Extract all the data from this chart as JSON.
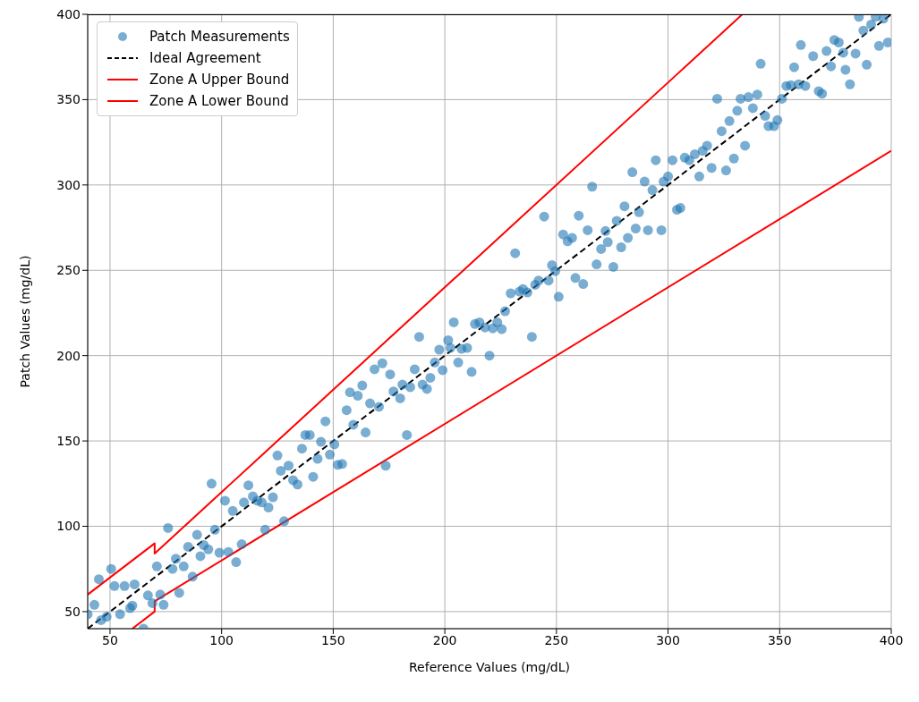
{
  "chart_data": {
    "type": "scatter",
    "xlabel": "Reference Values (mg/dL)",
    "ylabel": "Patch Values (mg/dL)",
    "xlim": [
      40,
      400
    ],
    "ylim": [
      40,
      400
    ],
    "xticks": [
      50,
      100,
      150,
      200,
      250,
      300,
      350,
      400
    ],
    "yticks": [
      50,
      100,
      150,
      200,
      250,
      300,
      350,
      400
    ],
    "grid": true,
    "legend": "top left",
    "series": [
      {
        "name": "Patch Measurements",
        "color": "#1f77b4",
        "marker": "circle",
        "x": [
          40,
          43,
          45,
          46,
          48.5,
          50.5,
          52,
          54.5,
          56.5,
          59,
          60,
          61,
          65,
          67,
          69,
          71,
          72.5,
          74,
          76,
          78,
          79.5,
          81,
          83,
          85,
          87,
          89,
          90.5,
          92,
          94,
          95.5,
          97,
          99,
          101.5,
          103,
          105,
          106.5,
          109,
          110,
          112,
          114,
          116,
          118,
          119.5,
          121,
          123,
          125,
          126.5,
          128,
          130,
          132,
          134,
          136,
          137.5,
          139.5,
          141,
          143,
          144.5,
          146.5,
          148.5,
          150.5,
          152,
          154,
          156,
          157.5,
          159,
          161,
          163,
          164.5,
          166.5,
          168.5,
          170.5,
          172,
          173.5,
          175.5,
          177,
          180,
          181,
          183,
          184.5,
          186.5,
          188.5,
          190,
          192,
          193.5,
          195.5,
          197.5,
          199,
          201.5,
          202.5,
          204,
          206,
          207.5,
          210,
          212,
          213.5,
          215.5,
          218,
          220,
          221.5,
          223.5,
          225.5,
          227,
          229.5,
          231.5,
          233.5,
          235,
          237,
          239,
          240.5,
          242,
          244.5,
          246.5,
          248,
          249.5,
          251,
          253,
          255,
          257,
          258.5,
          260,
          262,
          264,
          266,
          268,
          270,
          272,
          273,
          275.5,
          277,
          279,
          280.5,
          282,
          284,
          285.5,
          287,
          289.5,
          291,
          293,
          294.5,
          297,
          298,
          300,
          302,
          304,
          305.5,
          307.5,
          309.5,
          312,
          314,
          315.5,
          317.5,
          319.5,
          322,
          324,
          326,
          327.5,
          329.5,
          331,
          332.5,
          334.5,
          336,
          338,
          340,
          341.5,
          343.5,
          345,
          347.5,
          349,
          351,
          353,
          355,
          356.5,
          358.5,
          359.5,
          361.5,
          365,
          367.5,
          369,
          371,
          373,
          374.5,
          376.5,
          378.5,
          379.5,
          381.5,
          384,
          385.5,
          387.5,
          389,
          391,
          393,
          394.5,
          396.5,
          398.5
        ],
        "values": [
          48.5,
          54,
          69,
          45,
          47,
          75,
          65,
          48.5,
          65,
          52,
          53.5,
          66,
          40,
          59.5,
          55,
          76.5,
          60,
          54,
          99,
          75,
          81,
          61,
          76.5,
          88,
          70.5,
          95,
          82.5,
          89,
          86.5,
          125,
          98,
          84.5,
          115,
          85,
          109,
          79,
          89.5,
          114,
          124,
          117.5,
          115,
          114,
          98,
          111,
          117,
          141.5,
          132.5,
          103,
          135.5,
          127,
          124.5,
          145.5,
          153.5,
          153.5,
          129,
          139.5,
          149.5,
          161.5,
          142,
          148,
          136,
          136.5,
          168,
          178.5,
          159.5,
          176.5,
          182.5,
          155,
          172,
          192,
          170,
          195.5,
          135.5,
          189,
          179,
          175,
          183,
          153.5,
          181.5,
          192,
          211,
          183,
          180.5,
          187,
          196,
          203.5,
          191.5,
          209,
          204.5,
          219.5,
          196,
          204,
          204.5,
          190.5,
          218.5,
          219.5,
          216.5,
          200,
          216,
          219.5,
          215.5,
          226,
          236.5,
          260,
          237.5,
          239,
          237,
          211,
          241.5,
          244,
          281.5,
          244,
          253,
          249.5,
          234.5,
          271,
          267,
          269,
          245.5,
          282,
          242,
          273.5,
          299,
          253.5,
          262.5,
          273,
          266.5,
          252,
          279,
          263.5,
          287.5,
          269,
          307.5,
          274.5,
          284,
          302,
          273.5,
          297,
          314.5,
          273.5,
          302,
          305,
          314.5,
          285.5,
          286.5,
          316,
          314.5,
          318,
          305,
          320,
          323,
          310,
          350.5,
          331.5,
          308.5,
          337.5,
          315.5,
          343.5,
          350.5,
          323,
          351.5,
          345,
          353,
          371,
          340.5,
          334.5,
          334.5,
          338,
          350.5,
          358,
          358.5,
          369,
          359,
          382,
          358,
          375.5,
          355,
          353.5,
          378.5,
          369.5,
          385,
          383.5,
          377.5,
          367.5,
          359,
          377,
          398.5,
          390.5,
          370.5,
          394,
          398.5,
          381.5,
          397.5,
          383.5
        ]
      },
      {
        "name": "Ideal Agreement",
        "type": "line",
        "color": "#000000",
        "line_style": "dashed",
        "x": [
          40,
          400
        ],
        "values": [
          40,
          400
        ]
      },
      {
        "name": "Zone A Upper Bound",
        "type": "line",
        "color": "#ff0000",
        "line_style": "solid",
        "x": [
          40,
          70,
          70,
          333.3
        ],
        "values": [
          60,
          90,
          84,
          400
        ]
      },
      {
        "name": "Zone A Lower Bound",
        "type": "line",
        "color": "#ff0000",
        "line_style": "solid",
        "x": [
          60,
          70,
          70,
          400
        ],
        "values": [
          40,
          50,
          56,
          320
        ]
      }
    ]
  }
}
